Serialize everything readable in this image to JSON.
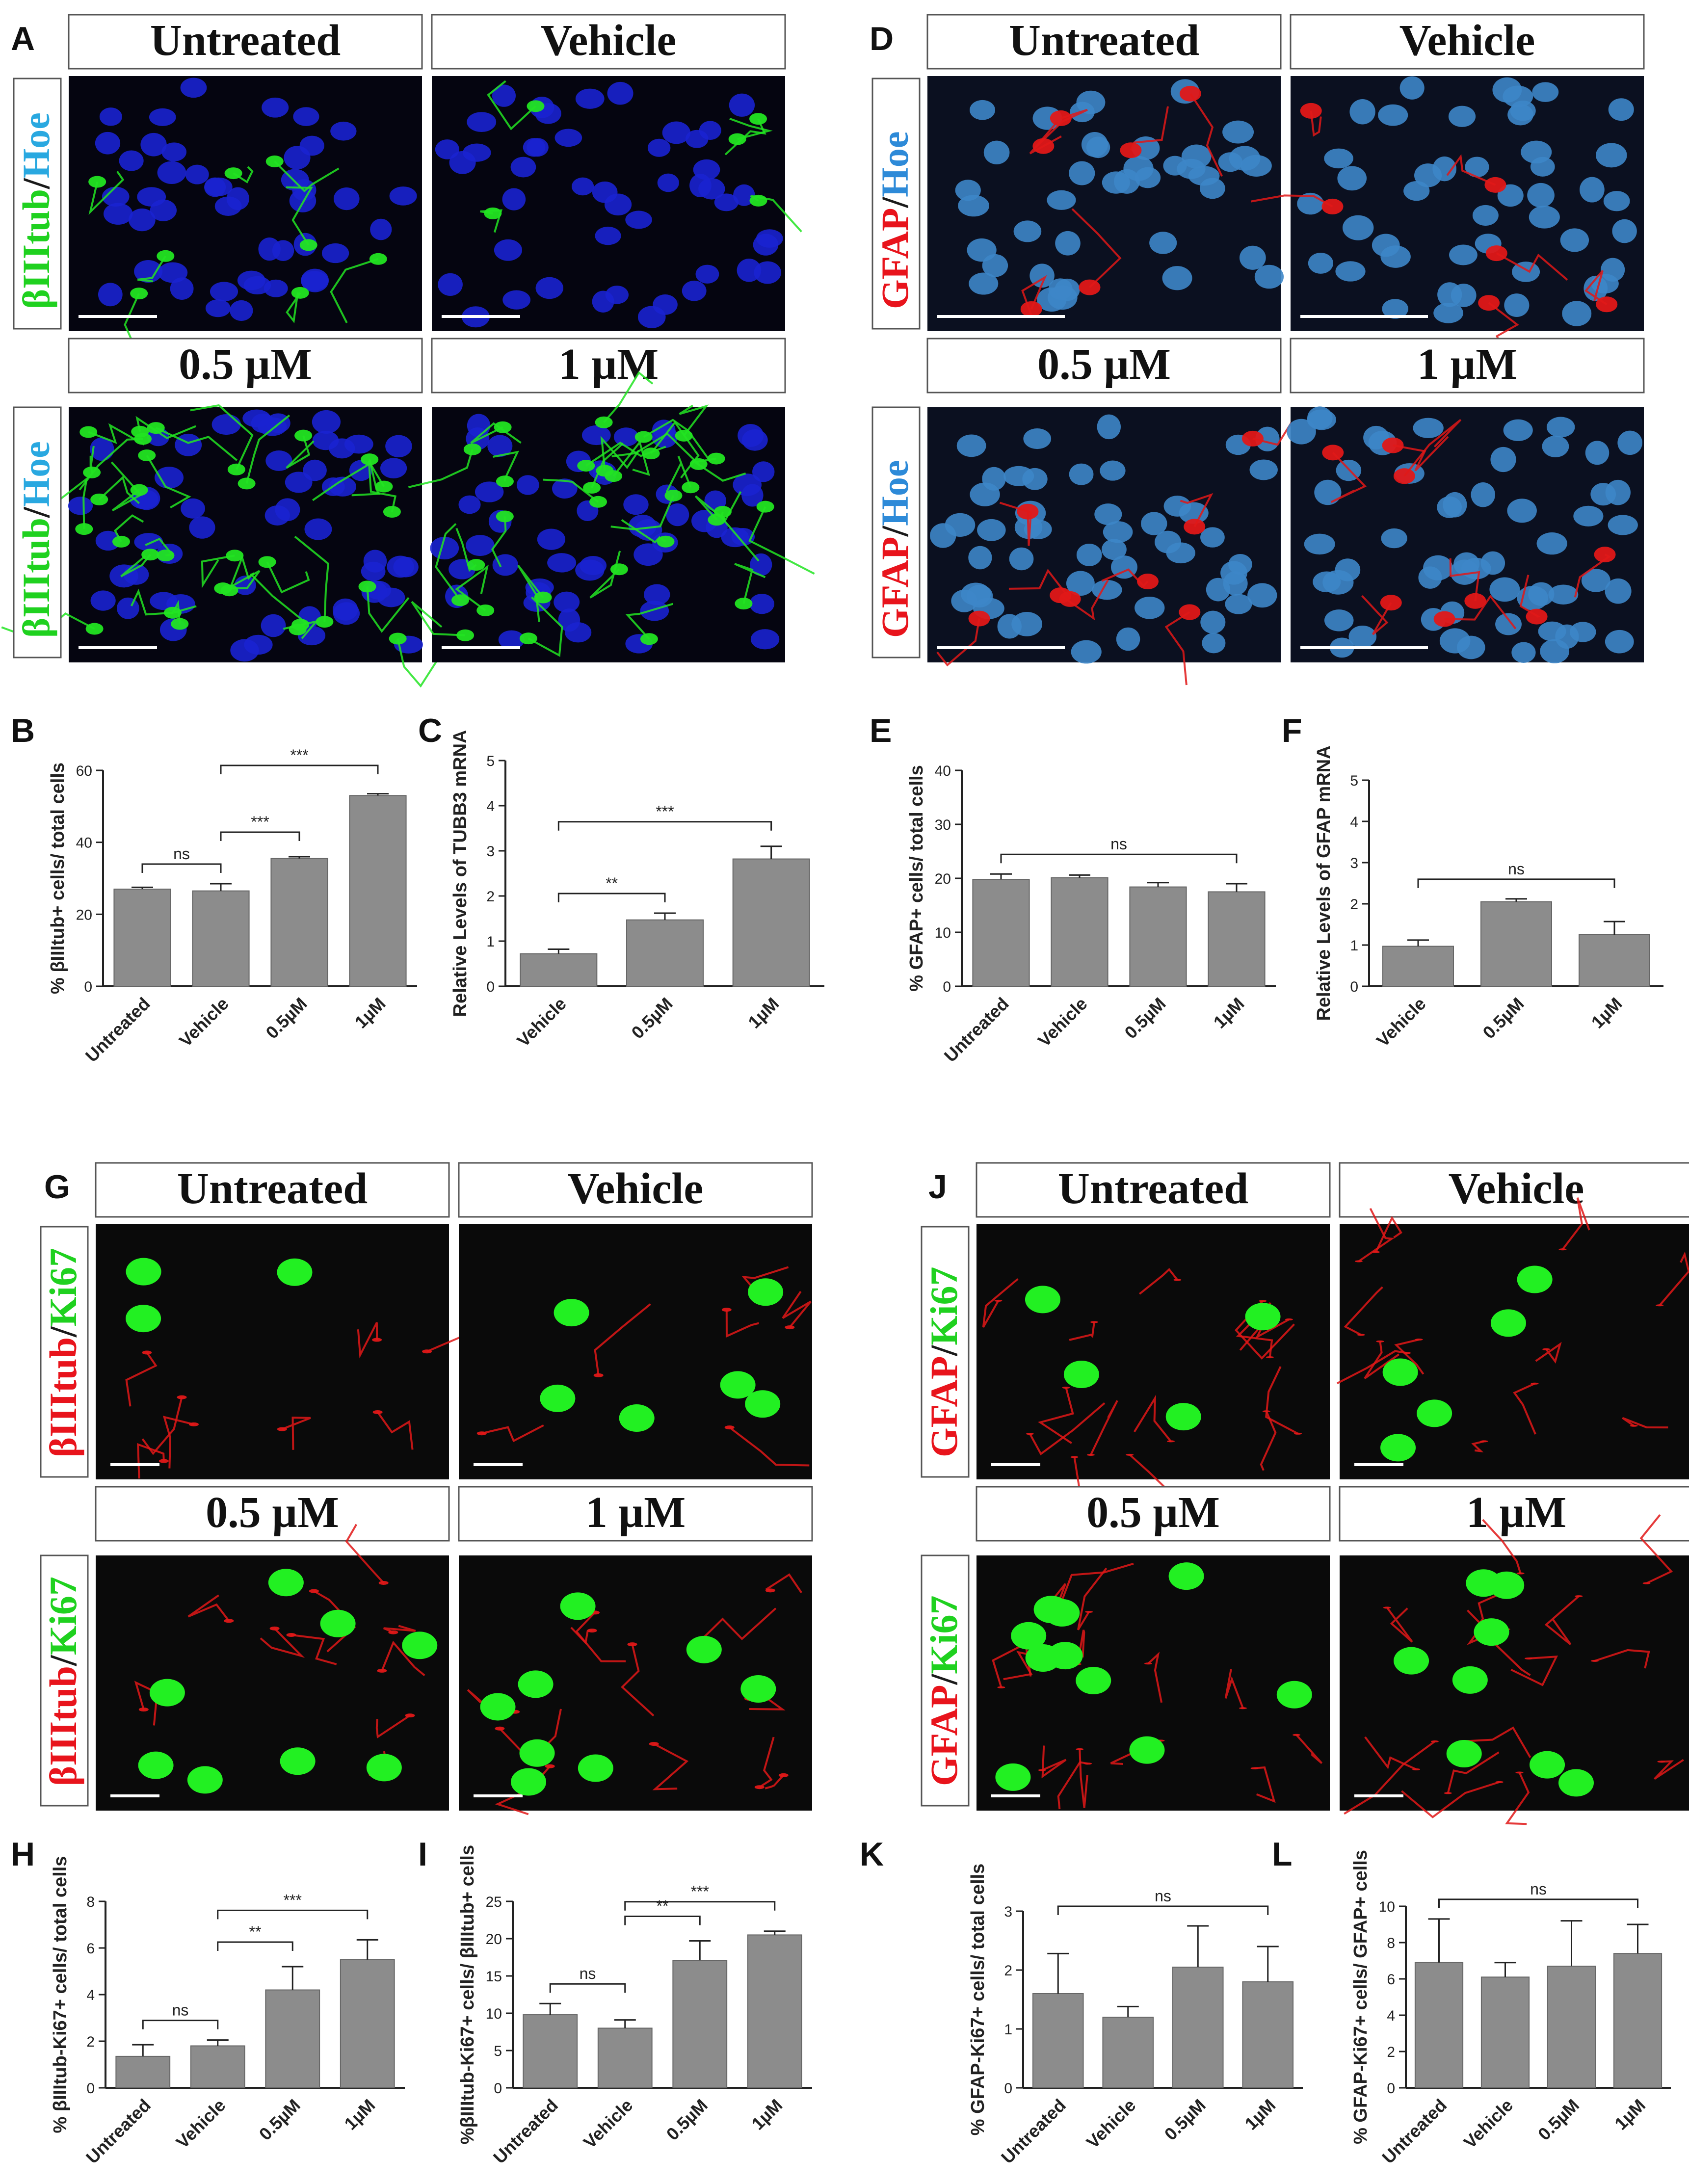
{
  "panel_letters": {
    "A": "A",
    "B": "B",
    "C": "C",
    "D": "D",
    "E": "E",
    "F": "F",
    "G": "G",
    "H": "H",
    "I": "I",
    "J": "J",
    "K": "K",
    "L": "L"
  },
  "conditions": {
    "untreated": "Untreated",
    "vehicle": "Vehicle",
    "low": "0.5 µM",
    "high": "1 µM"
  },
  "stains": {
    "A": [
      {
        "text": "βIIItub",
        "color": "#1fd11f"
      },
      {
        "text": "/",
        "color": "#1a1a1a"
      },
      {
        "text": "Hoe",
        "color": "#29a8e0"
      }
    ],
    "D": [
      {
        "text": "GFAP",
        "color": "#e8141c"
      },
      {
        "text": "/",
        "color": "#1a1a1a"
      },
      {
        "text": "Hoe",
        "color": "#2d8ad8"
      }
    ],
    "G": [
      {
        "text": "βIIItub",
        "color": "#e8141c"
      },
      {
        "text": "/",
        "color": "#1a1a1a"
      },
      {
        "text": "Ki67",
        "color": "#1fd11f"
      }
    ],
    "J": [
      {
        "text": "GFAP",
        "color": "#e8141c"
      },
      {
        "text": "/",
        "color": "#1a1a1a"
      },
      {
        "text": "Ki67",
        "color": "#1fd11f"
      }
    ]
  },
  "colors": {
    "bar": "#8c8c8c",
    "hoechst": "#1a22d0",
    "tubulin_green": "#22e422",
    "gfap_red": "#e01818",
    "ki67_green": "#22f022",
    "micro_bg": "#050510"
  },
  "chart_data": [
    {
      "panel": "B",
      "type": "bar",
      "ylabel": "% βIIItub+ cells/ total cells",
      "categories": [
        "Untreated",
        "Vehicle",
        "0.5µM",
        "1µM"
      ],
      "values": [
        27,
        26.5,
        35.5,
        53
      ],
      "errors": [
        0.5,
        2,
        0.5,
        0.5
      ],
      "ylim": [
        0,
        60
      ],
      "yticks": [
        0,
        20,
        40,
        60
      ],
      "significance": [
        {
          "from": 0,
          "to": 1,
          "label": "ns"
        },
        {
          "from": 1,
          "to": 2,
          "label": "***"
        },
        {
          "from": 1,
          "to": 3,
          "label": "***"
        }
      ]
    },
    {
      "panel": "C",
      "type": "bar",
      "ylabel": "Relative Levels of TUBB3 mRNA",
      "categories": [
        "Vehicle",
        "0.5µM",
        "1µM"
      ],
      "values": [
        0.72,
        1.47,
        2.82
      ],
      "errors": [
        0.1,
        0.15,
        0.28
      ],
      "ylim": [
        0,
        5
      ],
      "yticks": [
        0,
        1,
        2,
        3,
        4,
        5
      ],
      "significance": [
        {
          "from": 0,
          "to": 1,
          "label": "**"
        },
        {
          "from": 0,
          "to": 2,
          "label": "***"
        }
      ]
    },
    {
      "panel": "E",
      "type": "bar",
      "ylabel": "% GFAP+ cells/ total cells",
      "categories": [
        "Untreated",
        "Vehicle",
        "0.5µM",
        "1µM"
      ],
      "values": [
        19.8,
        20.1,
        18.4,
        17.5
      ],
      "errors": [
        1,
        0.5,
        0.8,
        1.5
      ],
      "ylim": [
        0,
        40
      ],
      "yticks": [
        0,
        10,
        20,
        30,
        40
      ],
      "significance": [
        {
          "from": 0,
          "to": 3,
          "label": "ns"
        }
      ]
    },
    {
      "panel": "F",
      "type": "bar",
      "ylabel": "Relative Levels of GFAP mRNA",
      "categories": [
        "Vehicle",
        "0.5µM",
        "1µM"
      ],
      "values": [
        0.97,
        2.05,
        1.25
      ],
      "errors": [
        0.15,
        0.07,
        0.32
      ],
      "ylim": [
        0,
        5
      ],
      "yticks": [
        0,
        1,
        2,
        3,
        4,
        5
      ],
      "significance": [
        {
          "from": 0,
          "to": 2,
          "label": "ns"
        }
      ]
    },
    {
      "panel": "H",
      "type": "bar",
      "ylabel": "% βIIItub-Ki67+ cells/ total cells",
      "categories": [
        "Untreated",
        "Vehicle",
        "0.5µM",
        "1µM"
      ],
      "values": [
        1.35,
        1.8,
        4.2,
        5.5
      ],
      "errors": [
        0.5,
        0.25,
        1.0,
        0.85
      ],
      "ylim": [
        0,
        8
      ],
      "yticks": [
        0,
        2,
        4,
        6,
        8
      ],
      "significance": [
        {
          "from": 0,
          "to": 1,
          "label": "ns"
        },
        {
          "from": 1,
          "to": 2,
          "label": "**"
        },
        {
          "from": 1,
          "to": 3,
          "label": "***"
        }
      ]
    },
    {
      "panel": "I",
      "type": "bar",
      "ylabel": "%βIIItub-Ki67+ cells/ βIIItub+ cells",
      "categories": [
        "Untreated",
        "Vehicle",
        "0.5µM",
        "1µM"
      ],
      "values": [
        9.8,
        8,
        17.1,
        20.5
      ],
      "errors": [
        1.5,
        1.1,
        2.6,
        0.5
      ],
      "ylim": [
        0,
        25
      ],
      "yticks": [
        0,
        5,
        10,
        15,
        20,
        25
      ],
      "significance": [
        {
          "from": 0,
          "to": 1,
          "label": "ns"
        },
        {
          "from": 1,
          "to": 2,
          "label": "**"
        },
        {
          "from": 1,
          "to": 3,
          "label": "***"
        }
      ]
    },
    {
      "panel": "K",
      "type": "bar",
      "ylabel": "% GFAP-Ki67+ cells/ total cells",
      "categories": [
        "Untreated",
        "Vehicle",
        "0.5µM",
        "1µM"
      ],
      "values": [
        1.6,
        1.2,
        2.05,
        1.8
      ],
      "errors": [
        0.68,
        0.18,
        0.7,
        0.6
      ],
      "ylim": [
        0,
        3
      ],
      "yticks": [
        0,
        1,
        2,
        3
      ],
      "significance": [
        {
          "from": 0,
          "to": 3,
          "label": "ns"
        }
      ]
    },
    {
      "panel": "L",
      "type": "bar",
      "ylabel": "% GFAP-Ki67+ cells/ GFAP+ cells",
      "categories": [
        "Untreated",
        "Vehicle",
        "0.5µM",
        "1µM"
      ],
      "values": [
        6.9,
        6.1,
        6.7,
        7.4
      ],
      "errors": [
        2.4,
        0.8,
        2.5,
        1.6
      ],
      "ylim": [
        0,
        10
      ],
      "yticks": [
        0,
        2,
        4,
        6,
        8,
        10
      ],
      "significance": [
        {
          "from": 0,
          "to": 3,
          "label": "ns"
        }
      ]
    }
  ]
}
